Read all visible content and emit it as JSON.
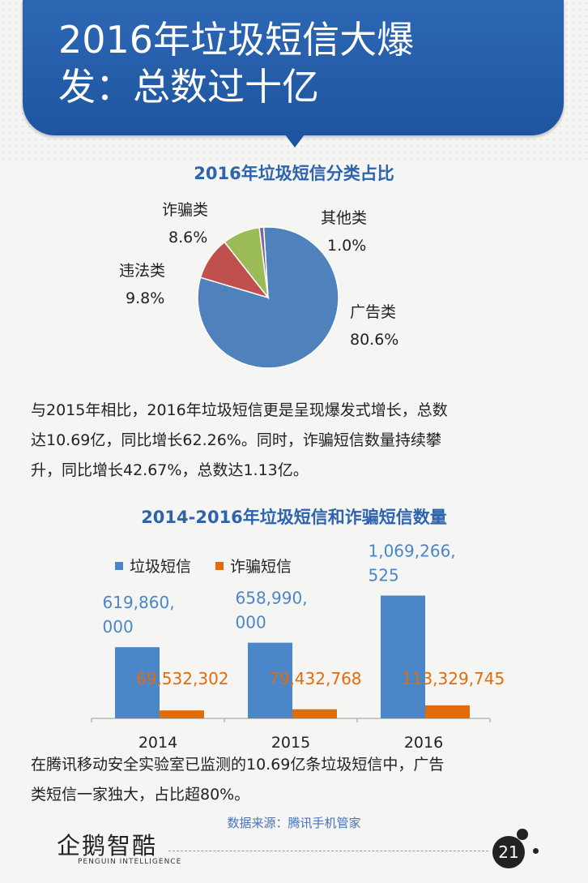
{
  "header": {
    "title_line1": "2016年垃圾短信大爆",
    "title_line2": "发：总数过十亿"
  },
  "paragraph1": {
    "line1": "与2015年相比，2016年垃圾短信更是呈现爆发式增长，总数",
    "line2": "达10.69亿，同比增长62.26%。同时，诈骗短信数量持续攀",
    "line3": "升，同比增长42.67%，总数达1.13亿。"
  },
  "paragraph2": {
    "line1": "在腾讯移动安全实验室已监测的10.69亿条垃圾短信中，广告",
    "line2": "类短信一家独大，占比超80%。"
  },
  "source": "数据来源：腾讯手机管家",
  "footer": {
    "logo": "企鹅智酷",
    "logo_sub": "PENGUIN INTELLIGENCE",
    "page_number": "21"
  },
  "colors": {
    "banner": "#2d67b4",
    "title_blue": "#2e63ad",
    "spam_blue": "#4a86c8",
    "fraud_orange": "#e36c0a",
    "ad": "#4f81bd",
    "illegal": "#c0504d",
    "fraud_green": "#9bbb59",
    "other": "#8064a2"
  },
  "chart_data": [
    {
      "type": "pie",
      "title": "2016年垃圾短信分类占比",
      "slices": [
        {
          "name": "广告类",
          "value": 80.6,
          "label": "80.6%",
          "color": "#4f81bd"
        },
        {
          "name": "违法类",
          "value": 9.8,
          "label": "9.8%",
          "color": "#c0504d"
        },
        {
          "name": "诈骗类",
          "value": 8.6,
          "label": "8.6%",
          "color": "#9bbb59"
        },
        {
          "name": "其他类",
          "value": 1.0,
          "label": "1.0%",
          "color": "#8064a2"
        }
      ]
    },
    {
      "type": "bar",
      "title": "2014-2016年垃圾短信和诈骗短信数量",
      "categories": [
        "2014",
        "2015",
        "2016"
      ],
      "series": [
        {
          "name": "垃圾短信",
          "color": "#4a86c8",
          "values": [
            619860000,
            658990000,
            1069266525
          ],
          "labels": [
            [
              "619,860,",
              "000"
            ],
            [
              "658,990,",
              "000"
            ],
            [
              "1,069,266,",
              "525"
            ]
          ]
        },
        {
          "name": "诈骗短信",
          "color": "#e36c0a",
          "values": [
            69532302,
            79432768,
            113329745
          ],
          "labels": [
            "69,532,302",
            "79,432,768",
            "113,329,745"
          ]
        }
      ],
      "ylim": [
        0,
        1200000000
      ],
      "legend": "top-left",
      "grid": false
    }
  ]
}
